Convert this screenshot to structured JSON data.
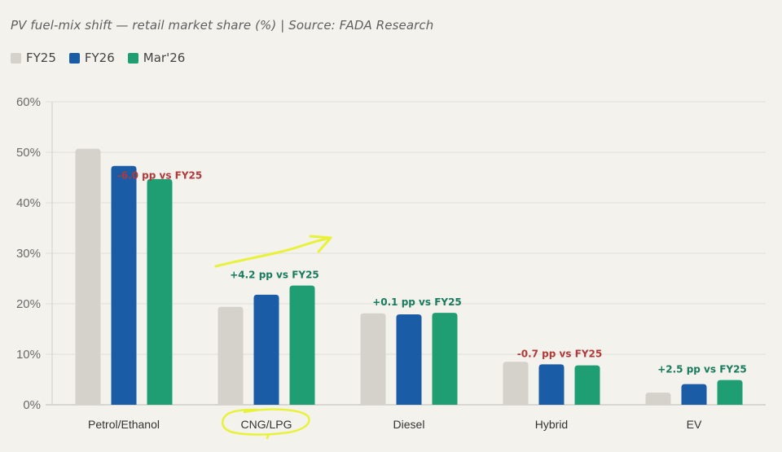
{
  "title": "PV fuel-mix shift — retail market share (%) | Source: FADA Research",
  "legend": [
    {
      "label": "FY25",
      "color": "#d5d1cb"
    },
    {
      "label": "FY26",
      "color": "#1b5ca6"
    },
    {
      "label": "Mar'26",
      "color": "#1f9e74"
    }
  ],
  "colors": {
    "background": "#f3f2ed",
    "grid": "#e6e5e0",
    "axis": "#cfcdc8",
    "negative": "#b03a3a",
    "positive": "#1a7a5e",
    "highlight": "#e9f23a"
  },
  "chart_data": {
    "type": "bar",
    "title": "PV fuel-mix shift — retail market share (%) | Source: FADA Research",
    "xlabel": "",
    "ylabel": "",
    "ylim": [
      0,
      60
    ],
    "yticks": [
      "0%",
      "10%",
      "20%",
      "30%",
      "40%",
      "50%",
      "60%"
    ],
    "grid": true,
    "legend_position": "top-left",
    "categories": [
      "Petrol/Ethanol",
      "CNG/LPG",
      "Diesel",
      "Hybrid",
      "EV"
    ],
    "series": [
      {
        "name": "FY25",
        "values": [
          50.7,
          19.4,
          18.1,
          8.5,
          2.4
        ]
      },
      {
        "name": "FY26",
        "values": [
          47.3,
          21.8,
          17.9,
          8.0,
          4.1
        ]
      },
      {
        "name": "Mar'26",
        "values": [
          44.7,
          23.6,
          18.2,
          7.8,
          4.9
        ]
      }
    ],
    "annotations": [
      {
        "category": "Petrol/Ethanol",
        "text": "-6.0 pp vs FY25",
        "sign": "negative"
      },
      {
        "category": "CNG/LPG",
        "text": "+4.2 pp vs FY25",
        "sign": "positive"
      },
      {
        "category": "Diesel",
        "text": "+0.1 pp vs FY25",
        "sign": "positive"
      },
      {
        "category": "Hybrid",
        "text": "-0.7 pp vs FY25",
        "sign": "negative"
      },
      {
        "category": "EV",
        "text": "+2.5 pp vs FY25",
        "sign": "positive"
      }
    ],
    "hand_drawn_marks": [
      {
        "type": "arrow",
        "direction": "up-right",
        "near": "CNG/LPG"
      },
      {
        "type": "circle",
        "around": "CNG/LPG x-axis label"
      }
    ]
  }
}
